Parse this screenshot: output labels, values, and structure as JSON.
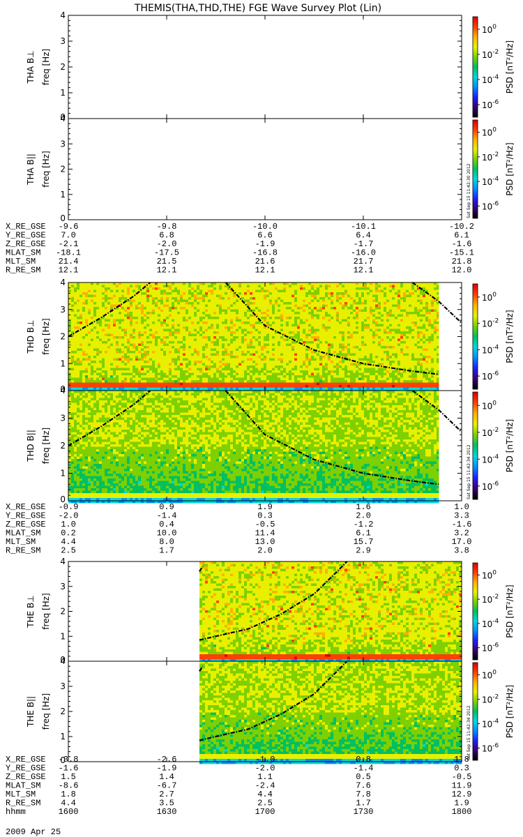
{
  "title": "THEMIS(THA,THD,THE) FGE Wave Survey Plot (Lin)",
  "colorbar": {
    "label": "PSD [nT²/Hz]",
    "ticks": [
      {
        "base": "10",
        "exp": "0",
        "value": 1
      },
      {
        "base": "10",
        "exp": "-2",
        "value": 0.01
      },
      {
        "base": "10",
        "exp": "-4",
        "value": 0.0001
      },
      {
        "base": "10",
        "exp": "-6",
        "value": 1e-06
      }
    ],
    "range": [
      1e-07,
      10
    ]
  },
  "colors": {
    "rainbow": [
      "#000000",
      "#3a0072",
      "#1f1fff",
      "#0090ff",
      "#00d8e0",
      "#00c060",
      "#7ed000",
      "#e8f000",
      "#ffb000",
      "#ff4000",
      "#d80000"
    ],
    "curve": "#000000"
  },
  "stamps": [
    "Sat Sep 15 11:42:30 2012",
    "Sat Sep 15 11:42:34 2012",
    "Sat Sep 15 11:42:34 2012"
  ],
  "date_label": "2009 Apr 25",
  "chart_data": [
    {
      "type": "heatmap",
      "ylabel": "THA B⊥",
      "ylabel2": "freq [Hz]",
      "ylim": [
        0,
        4
      ],
      "yticks": [
        "0",
        "1",
        "2",
        "3",
        "4"
      ],
      "data_coverage": null
    },
    {
      "type": "heatmap",
      "ylabel": "THA B||",
      "ylabel2": "freq [Hz]",
      "ylim": [
        0,
        4
      ],
      "yticks": [
        "0",
        "1",
        "2",
        "3",
        "4"
      ],
      "data_coverage": null
    },
    {
      "type": "heatmap",
      "ylabel": "THD B⊥",
      "ylabel2": "freq [Hz]",
      "ylim": [
        0,
        4
      ],
      "yticks": [
        "0",
        "1",
        "2",
        "3",
        "4"
      ],
      "data_coverage": [
        "16:00",
        "17:53"
      ],
      "curves": [
        {
          "x": [
            "16:00",
            "16:10",
            "16:20",
            "16:25"
          ],
          "y": [
            2.0,
            2.7,
            3.5,
            4.0
          ]
        },
        {
          "x": [
            "16:48",
            "17:00",
            "17:15",
            "17:30",
            "17:45",
            "17:53"
          ],
          "y": [
            4.0,
            2.4,
            1.5,
            1.0,
            0.72,
            0.6
          ]
        },
        {
          "x": [
            "17:45",
            "17:53",
            "18:00"
          ],
          "y": [
            4.0,
            3.3,
            2.5
          ]
        }
      ]
    },
    {
      "type": "heatmap",
      "ylabel": "THD B||",
      "ylabel2": "freq [Hz]",
      "ylim": [
        0,
        4
      ],
      "yticks": [
        "0",
        "1",
        "2",
        "3",
        "4"
      ],
      "data_coverage": [
        "16:00",
        "17:53"
      ],
      "curves": [
        {
          "x": [
            "16:00",
            "16:10",
            "16:20",
            "16:25"
          ],
          "y": [
            2.0,
            2.7,
            3.5,
            4.0
          ]
        },
        {
          "x": [
            "16:48",
            "17:00",
            "17:15",
            "17:30",
            "17:45",
            "17:53"
          ],
          "y": [
            4.0,
            2.4,
            1.5,
            1.0,
            0.72,
            0.6
          ]
        },
        {
          "x": [
            "17:45",
            "17:53",
            "18:00"
          ],
          "y": [
            4.0,
            3.3,
            2.5
          ]
        }
      ]
    },
    {
      "type": "heatmap",
      "ylabel": "THE B⊥",
      "ylabel2": "freq [Hz]",
      "ylim": [
        0,
        4
      ],
      "yticks": [
        "0",
        "1",
        "2",
        "3",
        "4"
      ],
      "data_coverage": [
        "16:40",
        "18:00"
      ],
      "curves": [
        {
          "x": [
            "16:40",
            "16:41"
          ],
          "y": [
            3.6,
            3.8
          ]
        },
        {
          "x": [
            "16:40",
            "16:55",
            "17:05",
            "17:15",
            "17:22",
            "17:25"
          ],
          "y": [
            0.85,
            1.3,
            1.9,
            2.7,
            3.6,
            4.0
          ]
        }
      ]
    },
    {
      "type": "heatmap",
      "ylabel": "THE B||",
      "ylabel2": "freq [Hz]",
      "ylim": [
        0,
        4
      ],
      "yticks": [
        "0",
        "1",
        "2",
        "3",
        "4"
      ],
      "data_coverage": [
        "16:40",
        "18:00"
      ],
      "curves": [
        {
          "x": [
            "16:40",
            "16:41"
          ],
          "y": [
            3.6,
            3.8
          ]
        },
        {
          "x": [
            "16:40",
            "16:55",
            "17:05",
            "17:15",
            "17:22",
            "17:25"
          ],
          "y": [
            0.85,
            1.3,
            1.9,
            2.7,
            3.6,
            4.0
          ]
        }
      ]
    }
  ],
  "ephemeris": [
    {
      "rows": [
        {
          "label": "X_RE_GSE",
          "values": [
            "-9.6",
            "-9.8",
            "-10.0",
            "-10.1",
            "-10.2"
          ]
        },
        {
          "label": "Y_RE_GSE",
          "values": [
            "7.0",
            "6.8",
            "6.6",
            "6.4",
            "6.1"
          ]
        },
        {
          "label": "Z_RE_GSE",
          "values": [
            "-2.1",
            "-2.0",
            "-1.9",
            "-1.7",
            "-1.6"
          ]
        },
        {
          "label": "MLAT_SM",
          "values": [
            "-18.1",
            "-17.5",
            "-16.8",
            "-16.0",
            "-15.1"
          ]
        },
        {
          "label": "MLT_SM",
          "values": [
            "21.4",
            "21.5",
            "21.6",
            "21.7",
            "21.8"
          ]
        },
        {
          "label": "R_RE_SM",
          "values": [
            "12.1",
            "12.1",
            "12.1",
            "12.1",
            "12.0"
          ]
        }
      ]
    },
    {
      "rows": [
        {
          "label": "X_RE_GSE",
          "values": [
            "-0.9",
            "0.9",
            "1.9",
            "1.6",
            "1.0"
          ]
        },
        {
          "label": "Y_RE_GSE",
          "values": [
            "-2.0",
            "-1.4",
            "0.3",
            "2.0",
            "3.3"
          ]
        },
        {
          "label": "Z_RE_GSE",
          "values": [
            "1.0",
            "0.4",
            "-0.5",
            "-1.2",
            "-1.6"
          ]
        },
        {
          "label": "MLAT_SM",
          "values": [
            "0.2",
            "10.0",
            "11.4",
            "6.1",
            "3.2"
          ]
        },
        {
          "label": "MLT_SM",
          "values": [
            "4.4",
            "8.0",
            "13.0",
            "15.7",
            "17.0"
          ]
        },
        {
          "label": "R_RE_SM",
          "values": [
            "2.5",
            "1.7",
            "2.0",
            "2.9",
            "3.8"
          ]
        }
      ]
    },
    {
      "rows": [
        {
          "label": "X_RE_GSE",
          "values": [
            "-3.8",
            "-2.6",
            "-1.0",
            "0.8",
            "1.8"
          ]
        },
        {
          "label": "Y_RE_GSE",
          "values": [
            "-1.6",
            "-1.9",
            "-2.0",
            "-1.4",
            "0.3"
          ]
        },
        {
          "label": "Z_RE_GSE",
          "values": [
            "1.5",
            "1.4",
            "1.1",
            "0.5",
            "-0.5"
          ]
        },
        {
          "label": "MLAT_SM",
          "values": [
            "-8.6",
            "-6.7",
            "-2.4",
            "7.6",
            "11.9"
          ]
        },
        {
          "label": "MLT_SM",
          "values": [
            "1.8",
            "2.7",
            "4.4",
            "7.8",
            "12.9"
          ]
        },
        {
          "label": "R_RE_SM",
          "values": [
            "4.4",
            "3.5",
            "2.5",
            "1.7",
            "1.9"
          ]
        },
        {
          "label": "hhmm",
          "values": [
            "1600",
            "1630",
            "1700",
            "1730",
            "1800"
          ]
        }
      ]
    }
  ],
  "xaxis": {
    "ticks": [
      "16:00",
      "16:30",
      "17:00",
      "17:30",
      "18:00"
    ],
    "range": [
      "16:00",
      "18:00"
    ]
  }
}
